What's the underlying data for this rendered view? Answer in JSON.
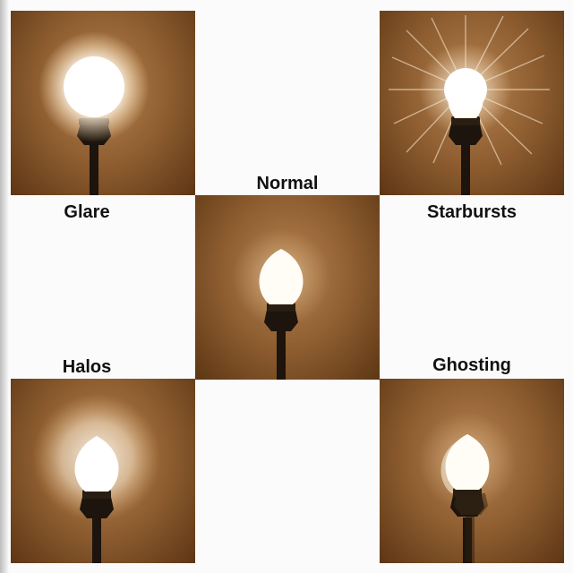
{
  "labels": {
    "glare": "Glare",
    "normal": "Normal",
    "starbursts": "Starbursts",
    "halos": "Halos",
    "ghosting": "Ghosting"
  },
  "colors": {
    "background": "#fbfbfb",
    "panel_light": "#b7834f",
    "panel_dark": "#5c3614",
    "bulb_light": "#fffdf4",
    "socket": "#1c140d"
  },
  "icons": [
    "light-bulb-icon"
  ]
}
